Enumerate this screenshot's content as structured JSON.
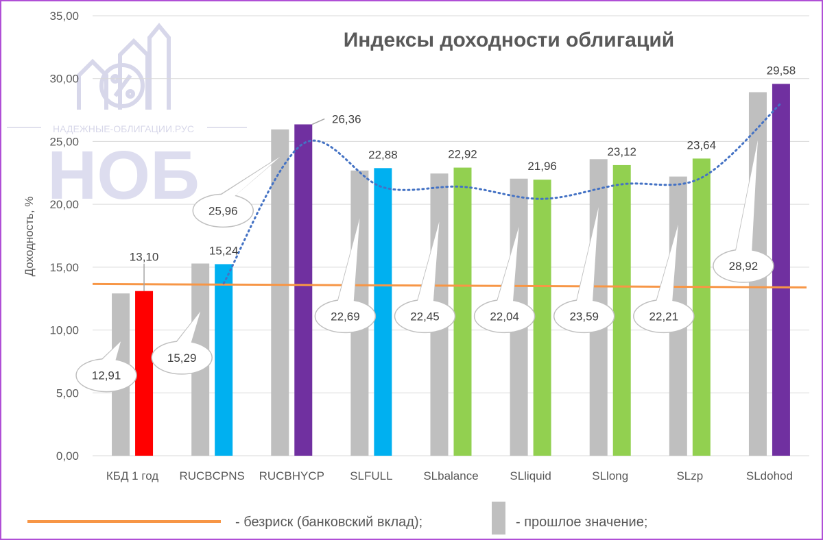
{
  "chart_data": {
    "type": "bar",
    "title": "Индексы доходности облигаций",
    "ylabel": "Доходность, %",
    "ylim": [
      0,
      35
    ],
    "yticks": [
      "0,00",
      "5,00",
      "10,00",
      "15,00",
      "20,00",
      "25,00",
      "30,00",
      "35,00"
    ],
    "categories": [
      "КБД 1 год",
      "RUCBCPNS",
      "RUCBHYCP",
      "SLFULL",
      "SLbalance",
      "SLliquid",
      "SLlong",
      "SLzp",
      "SLdohod"
    ],
    "series": [
      {
        "name": "прошлое значение",
        "values": [
          12.91,
          15.29,
          25.96,
          22.69,
          22.45,
          22.04,
          23.59,
          22.21,
          28.92
        ],
        "labels": [
          "12,91",
          "15,29",
          "25,96",
          "22,69",
          "22,45",
          "22,04",
          "23,59",
          "22,21",
          "28,92"
        ],
        "color": "#bfbfbf"
      },
      {
        "values": [
          13.1,
          15.24,
          26.36,
          22.88,
          22.92,
          21.96,
          23.12,
          23.64,
          29.58
        ],
        "labels": [
          "13,10",
          "15,24",
          "26,36",
          "22,88",
          "22,92",
          "21,96",
          "23,12",
          "23,64",
          "29,58"
        ],
        "colors": [
          "#ff0000",
          "#00b0f0",
          "#7030a0",
          "#00b0f0",
          "#92d050",
          "#92d050",
          "#92d050",
          "#92d050",
          "#7030a0"
        ]
      }
    ],
    "riskfree": {
      "name": "безриск (банковский вклад)",
      "value": 13.5,
      "color": "#f79646"
    },
    "trendline": {
      "style": "dotted",
      "color": "#4472c4"
    },
    "grid": true
  },
  "legend": {
    "riskfree_label": "- безриск (банковский вклад);",
    "previous_label": "- прошлое значение;"
  },
  "watermark": {
    "site": "НАДЕЖНЫЕ-ОБЛИГАЦИИ.РУС",
    "logo": "НОБ"
  }
}
